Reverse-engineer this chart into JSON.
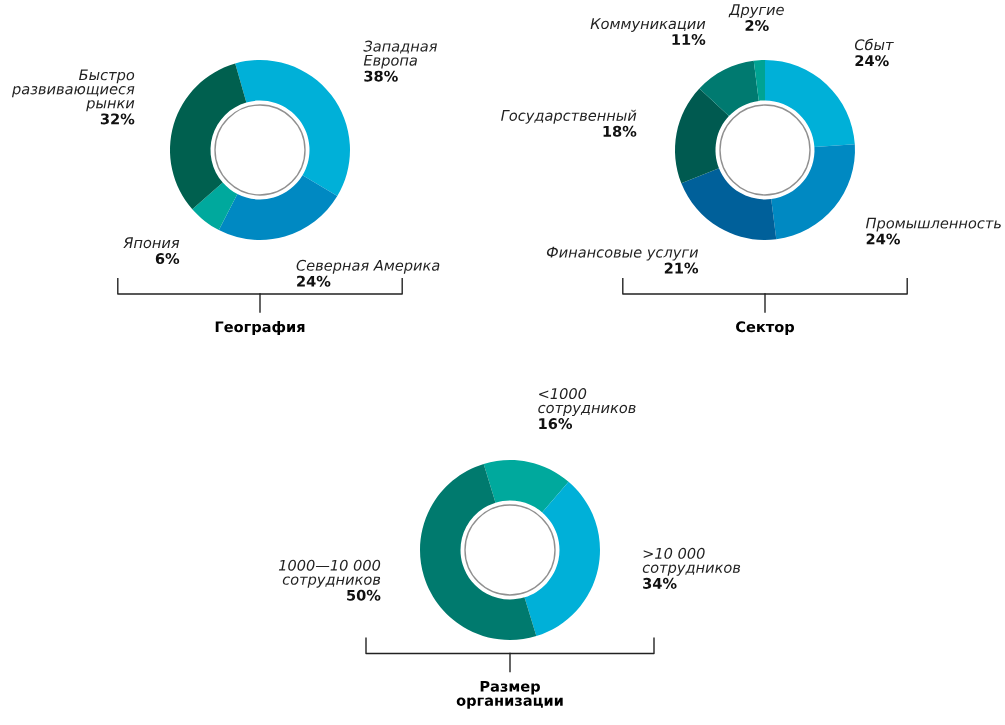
{
  "chart_data": [
    {
      "type": "donut",
      "title": "География",
      "categories": [
        "Западная\nЕвропа",
        "Северная Америка",
        "Япония",
        "Быстро\nразвивающиеся\nрынки"
      ],
      "values": [
        38,
        24,
        6,
        32
      ],
      "colors": [
        "#00b0d8",
        "#0089c2",
        "#00a99d",
        "#00604f"
      ],
      "value_labels": [
        "38%",
        "24%",
        "6%",
        "32%"
      ]
    },
    {
      "type": "donut",
      "title": "Сектор",
      "categories": [
        "Сбыт",
        "Промышленность",
        "Финансовые услуги",
        "Государственный",
        "Коммуникации",
        "Другие"
      ],
      "values": [
        24,
        24,
        21,
        18,
        11,
        2
      ],
      "colors": [
        "#00b0d8",
        "#0089c2",
        "#00609a",
        "#005a50",
        "#007a70",
        "#00a393"
      ],
      "value_labels": [
        "24%",
        "24%",
        "21%",
        "18%",
        "11%",
        "2%"
      ]
    },
    {
      "type": "donut",
      "title": "Размер\nорганизации",
      "categories": [
        "<1000\nсотрудников",
        ">10 000\nсотрудников",
        "1000—10 000\nсотрудников"
      ],
      "values": [
        16,
        34,
        50
      ],
      "colors": [
        "#00a99d",
        "#00b0d8",
        "#007a6e"
      ],
      "value_labels": [
        "16%",
        "34%",
        "50%"
      ]
    }
  ]
}
